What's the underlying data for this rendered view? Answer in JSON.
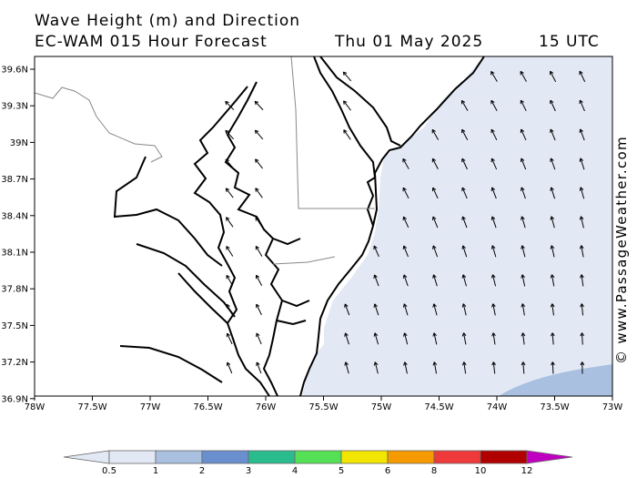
{
  "header": {
    "line1": "Wave Height (m) and Direction",
    "line2": "EC-WAM 015 Hour Forecast",
    "date": "Thu 01 May 2025",
    "time": "15 UTC"
  },
  "copyright": "© www.PassageWeather.com",
  "map": {
    "lon_range": [
      -78,
      -73
    ],
    "lat_range": [
      36.7,
      38.7
    ],
    "lat_ticks": [
      "39.6N",
      "39.3N",
      "39N",
      "38.7N",
      "38.4N",
      "38.1N",
      "37.8N",
      "37.5N",
      "37.2N",
      "36.9N"
    ],
    "lon_ticks": [
      "78W",
      "77.5W",
      "77W",
      "76.5W",
      "76W",
      "75.5W",
      "75W",
      "74.5W",
      "74W",
      "73.5W",
      "73W"
    ],
    "colors": {
      "sea_0_1": "#e2e9f5",
      "sea_1_2": "#a9c0e0",
      "land": "#ffffff",
      "coast": "#000000"
    }
  },
  "legend": {
    "labels": [
      "0.5",
      "1",
      "2",
      "3",
      "4",
      "5",
      "6",
      "8",
      "10",
      "12"
    ],
    "colors": [
      "#e2e9f5",
      "#a9c0e0",
      "#6a8fcf",
      "#2bbc8e",
      "#55e055",
      "#f2e600",
      "#f59a00",
      "#ee3a3a",
      "#b00000",
      "#c000c0"
    ],
    "units": "m"
  }
}
